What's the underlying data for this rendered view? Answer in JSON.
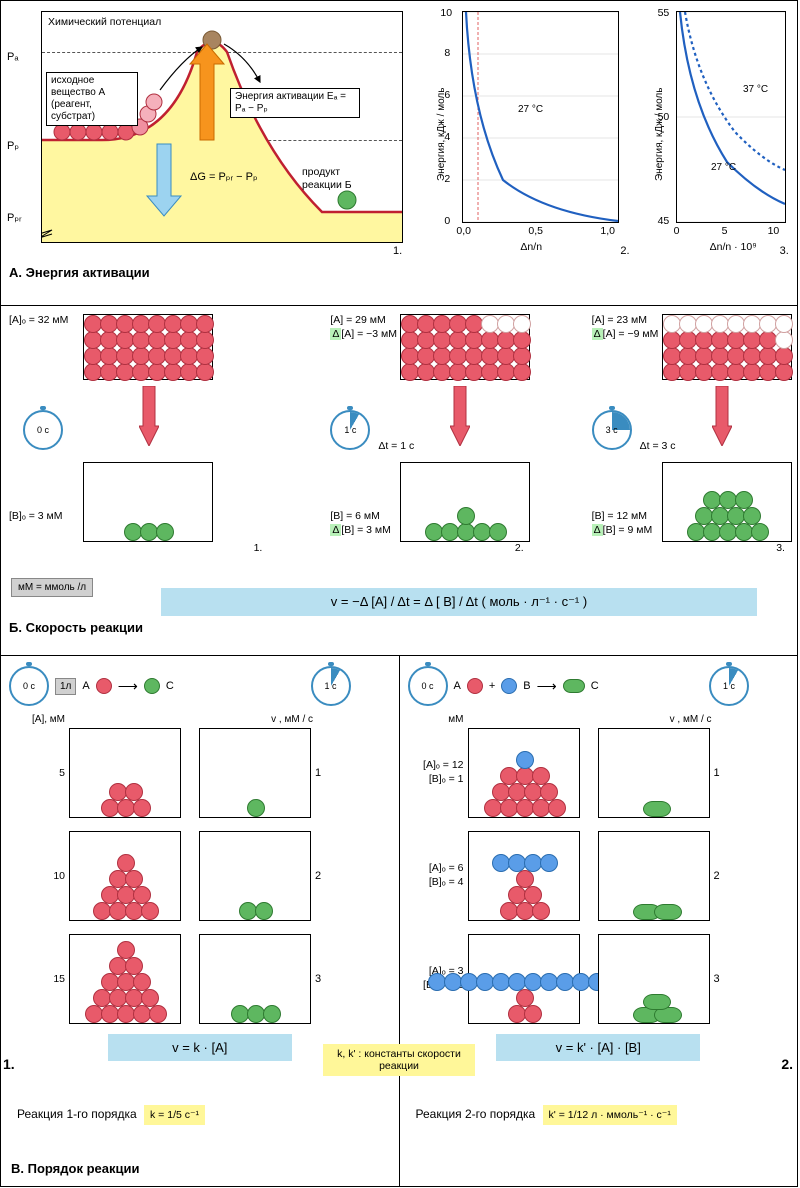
{
  "sectionA": {
    "title": "А. Энергия активации",
    "panel1": {
      "y_title": "Химический потенциал",
      "label_Pa": "Pₐ",
      "label_Pp": "Pₚ",
      "label_Ppr": "Pₚᵣ",
      "reagent_box": "исходное вещество А (реагент, субстрат)",
      "activation_box": "Энергия активации Eₐ = Pₐ − Pₚ",
      "deltaG": "ΔG = Pₚᵣ − Pₚ",
      "product": "продукт реакции Б",
      "num": "1.",
      "curve_color": "#c02030",
      "fill_color": "#fff7a0"
    },
    "panel2": {
      "ylabel": "Энергия, кДж / моль",
      "yticks": [
        0,
        2,
        4,
        6,
        8,
        10
      ],
      "xticks": [
        "0,0",
        "0,5",
        "1,0"
      ],
      "xlabel": "Δn/n",
      "temp": "27 °C",
      "num": "2.",
      "line_color": "#2060c0",
      "dash_color": "#e06060"
    },
    "panel3": {
      "ylabel": "Энергия, кДж / моль",
      "yticks": [
        45,
        50,
        55
      ],
      "xticks": [
        "0",
        "5",
        "10"
      ],
      "xlabel": "Δn/n · 10⁹",
      "temp1": "37 °C",
      "temp2": "27 °C",
      "num": "3.",
      "line_color": "#2060c0"
    }
  },
  "sectionB": {
    "title": "Б. Скорость реакции",
    "states": [
      {
        "A_lbl": "[A]ₒ = 32 мМ",
        "dA": "",
        "clock": "0 c",
        "dt": "",
        "B_lbl": "[B]ₒ = 3 мМ",
        "dB": "",
        "num": "1.",
        "red_full": 32,
        "red_empty": 0,
        "green": 3,
        "slice": 0
      },
      {
        "A_lbl": "[A] = 29 мМ",
        "dA": "Δ[A] = −3 мМ",
        "clock": "1 c",
        "dt": "Δt = 1 c",
        "B_lbl": "[B] = 6 мМ",
        "dB": "Δ[B] = 3 мМ",
        "num": "2.",
        "red_full": 29,
        "red_empty": 3,
        "green": 6,
        "slice": 30
      },
      {
        "A_lbl": "[A] = 23 мМ",
        "dA": "Δ[A] = −9 мМ",
        "clock": "3 c",
        "dt": "Δt = 3 c",
        "B_lbl": "[B] = 12 мМ",
        "dB": "Δ[B] = 9 мМ",
        "num": "3.",
        "red_full": 23,
        "red_empty": 9,
        "green": 12,
        "slice": 90
      }
    ],
    "note": "мМ = ммоль /л",
    "formula": "v  =  −Δ [A] / Δt  =  Δ [ B] / Δt   ( моль · л⁻¹ · с⁻¹ )"
  },
  "sectionC": {
    "title": "В. Порядок реакции",
    "left": {
      "header_A": "A",
      "header_C": "C",
      "conc_lbl": "[A], мМ",
      "v_lbl": "v , мМ / c",
      "flag": "1л",
      "rows": [
        {
          "A": 5,
          "v": 1
        },
        {
          "A": 10,
          "v": 2
        },
        {
          "A": 15,
          "v": 3
        }
      ],
      "formula": "v  =  k · [A]",
      "bottom": "Реакция 1-го порядка",
      "k": "k = 1/5 с⁻¹",
      "big_num": "1."
    },
    "right": {
      "header_A": "A",
      "header_B": "B",
      "header_C": "C",
      "conc_lbl": "мМ",
      "v_lbl": "v , мМ / c",
      "rows": [
        {
          "A": 12,
          "B": 1,
          "v": 1
        },
        {
          "A": 6,
          "B": 4,
          "v": 2
        },
        {
          "A": 3,
          "B": 12,
          "v": 3
        }
      ],
      "formula": "v  =  k' · [A] · [B]",
      "bottom": "Реакция 2-го порядка",
      "k": "k' = 1/12 л · ммоль⁻¹ · с⁻¹",
      "big_num": "2."
    },
    "mid_yellow": "k, k' : константы скорости реакции"
  },
  "colors": {
    "red": "#e85a6a",
    "green": "#5eb760",
    "blue": "#5a9de8",
    "yellow_bg": "#fff799",
    "blue_bg": "#b8e0f0"
  }
}
